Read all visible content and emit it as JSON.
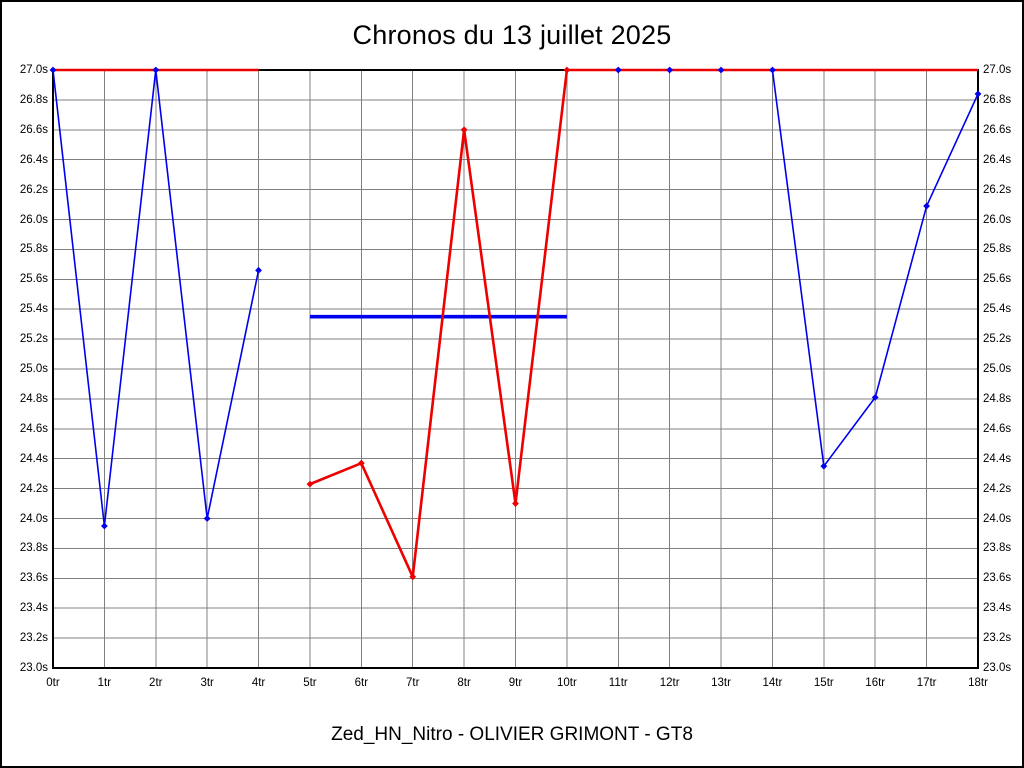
{
  "chart_data": {
    "type": "line",
    "title": "Chronos du 13 juillet 2025",
    "caption": "Zed_HN_Nitro - OLIVIER GRIMONT - GT8",
    "x_tick_labels": [
      "0tr",
      "1tr",
      "2tr",
      "3tr",
      "4tr",
      "5tr",
      "6tr",
      "7tr",
      "8tr",
      "9tr",
      "10tr",
      "11tr",
      "12tr",
      "13tr",
      "14tr",
      "15tr",
      "16tr",
      "17tr",
      "18tr"
    ],
    "y_tick_labels": [
      "27.0s",
      "26.8s",
      "26.6s",
      "26.4s",
      "26.2s",
      "26.0s",
      "25.8s",
      "25.6s",
      "25.4s",
      "25.2s",
      "25.0s",
      "24.8s",
      "24.6s",
      "24.4s",
      "24.2s",
      "24.0s",
      "23.8s",
      "23.6s",
      "23.4s",
      "23.2s",
      "23.0s"
    ],
    "ylim": [
      23.0,
      27.0
    ],
    "y_step": 0.2,
    "x_unit": "tr",
    "grid": true,
    "grid_color": "#808080",
    "frame_color": "#000000",
    "legend": "none",
    "series": [
      {
        "name": "blue-lap-times",
        "color": "#0000ee",
        "line_width": 1.6,
        "marker": "diamond",
        "segments": [
          {
            "markers": true,
            "points": [
              [
                0,
                27.0
              ],
              [
                1,
                23.95
              ],
              [
                2,
                27.0
              ],
              [
                3,
                24.0
              ],
              [
                4,
                25.66
              ]
            ]
          },
          {
            "markers": true,
            "points": [
              [
                11,
                27.0
              ],
              [
                12,
                27.0
              ],
              [
                13,
                27.0
              ],
              [
                14,
                27.0
              ],
              [
                15,
                24.35
              ],
              [
                16,
                24.81
              ],
              [
                17,
                26.09
              ],
              [
                18,
                26.84
              ]
            ]
          }
        ]
      },
      {
        "name": "blue-average-line",
        "color": "#0000ee",
        "line_width": 3.6,
        "marker": "none",
        "segments": [
          {
            "markers": false,
            "points": [
              [
                5,
                25.35
              ],
              [
                10,
                25.35
              ]
            ]
          }
        ]
      },
      {
        "name": "red-lap-times",
        "color": "#ee0000",
        "line_width": 2.6,
        "marker": "diamond",
        "segments": [
          {
            "markers": false,
            "points": [
              [
                0,
                27.0
              ],
              [
                4,
                27.0
              ]
            ]
          },
          {
            "markers": true,
            "points": [
              [
                5,
                24.23
              ],
              [
                6,
                24.37
              ],
              [
                7,
                23.61
              ],
              [
                8,
                26.6
              ],
              [
                9,
                24.1
              ],
              [
                10,
                27.0
              ]
            ]
          },
          {
            "markers": false,
            "points": [
              [
                10,
                27.0
              ],
              [
                18,
                27.0
              ]
            ]
          }
        ]
      }
    ]
  }
}
